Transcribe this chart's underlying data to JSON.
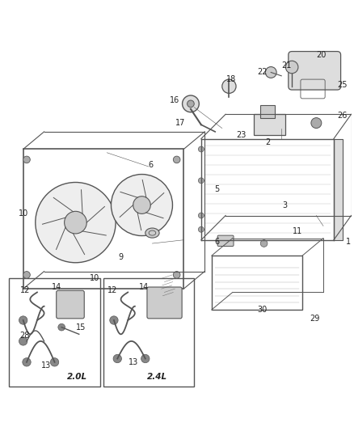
{
  "bg_color": "#ffffff",
  "line_color": "#555555",
  "text_color": "#222222",
  "label_2ol": "2.0L",
  "label_24l": "2.4L"
}
